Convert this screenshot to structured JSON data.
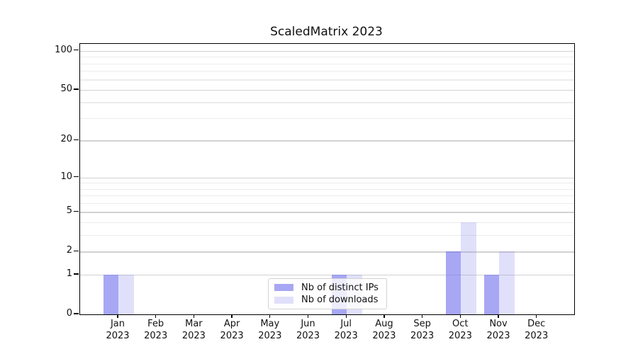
{
  "title": "ScaledMatrix 2023",
  "legend": {
    "items": [
      {
        "label": "Nb of distinct IPs",
        "color": "rgba(113,113,238,0.62)"
      },
      {
        "label": "Nb of downloads",
        "color": "rgba(113,113,238,0.22)"
      }
    ],
    "position": "bottom-center"
  },
  "chart_data": {
    "type": "bar",
    "title": "ScaledMatrix 2023",
    "categories": [
      "Jan",
      "Feb",
      "Mar",
      "Apr",
      "May",
      "Jun",
      "Jul",
      "Aug",
      "Sep",
      "Oct",
      "Nov",
      "Dec"
    ],
    "category_year": "2023",
    "series": [
      {
        "name": "Nb of distinct IPs",
        "color": "rgba(113,113,238,0.62)",
        "values": [
          1,
          0,
          0,
          0,
          0,
          0,
          1,
          0,
          0,
          2,
          1,
          0
        ]
      },
      {
        "name": "Nb of downloads",
        "color": "rgba(113,113,238,0.22)",
        "values": [
          1,
          0,
          0,
          0,
          0,
          0,
          1,
          0,
          0,
          4,
          2,
          0
        ]
      }
    ],
    "xlabel": "",
    "ylabel": "",
    "yscale": "log1p",
    "ylim": [
      0,
      113
    ],
    "y_major_ticks": [
      0,
      1,
      2,
      5,
      10,
      20,
      50,
      100
    ],
    "y_minor_ticks": [
      3,
      4,
      6,
      7,
      8,
      9,
      30,
      40,
      60,
      70,
      80,
      90
    ],
    "grid": "horizontal",
    "legend_position": "bottom-center"
  }
}
